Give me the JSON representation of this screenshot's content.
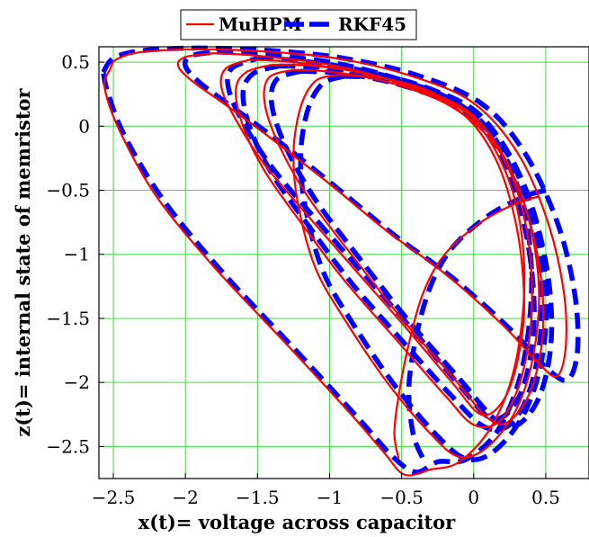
{
  "chart_data": {
    "type": "line",
    "title": "",
    "xlabel": "x(t)= voltage across capacitor",
    "ylabel": "z(t)= internal state of memristor",
    "xlim": [
      -2.6,
      0.8
    ],
    "ylim": [
      -2.75,
      0.62
    ],
    "x_ticks": [
      -2.5,
      -2,
      -1.5,
      -1,
      -0.5,
      0,
      0.5
    ],
    "x_tick_labels": [
      "−2.5",
      "−2",
      "−1.5",
      "−1",
      "−0.5",
      "0",
      "0.5"
    ],
    "y_ticks": [
      0.5,
      0,
      -0.5,
      -1,
      -1.5,
      -2,
      -2.5
    ],
    "y_tick_labels": [
      "0.5",
      "0",
      "−0.5",
      "−1",
      "−1.5",
      "−2",
      "−2.5"
    ],
    "grid": true,
    "legend_position": "top-center",
    "series": [
      {
        "name": "MuHPM",
        "color": "#ff0000",
        "style": "solid",
        "loops": [
          [
            [
              -2.52,
              0.45
            ],
            [
              -2.48,
              0.52
            ],
            [
              -2.3,
              0.58
            ],
            [
              -1.9,
              0.6
            ],
            [
              -1.4,
              0.58
            ],
            [
              -0.9,
              0.52
            ],
            [
              -0.4,
              0.38
            ],
            [
              0.0,
              0.18
            ],
            [
              0.3,
              -0.2
            ],
            [
              0.5,
              -0.7
            ],
            [
              0.62,
              -1.25
            ],
            [
              0.64,
              -1.7
            ],
            [
              0.58,
              -1.95
            ],
            [
              0.45,
              -1.85
            ],
            [
              0.2,
              -1.55
            ],
            [
              -0.2,
              -1.15
            ],
            [
              -0.6,
              -0.82
            ],
            [
              -1.0,
              -0.45
            ],
            [
              -1.4,
              -0.1
            ],
            [
              -1.7,
              0.15
            ],
            [
              -1.95,
              0.35
            ],
            [
              -2.05,
              0.47
            ],
            [
              -2.0,
              0.54
            ],
            [
              -1.8,
              0.57
            ]
          ],
          [
            [
              -1.8,
              0.57
            ],
            [
              -1.5,
              0.55
            ],
            [
              -1.0,
              0.48
            ],
            [
              -0.5,
              0.33
            ],
            [
              -0.1,
              0.12
            ],
            [
              0.15,
              -0.25
            ],
            [
              0.3,
              -0.8
            ],
            [
              0.35,
              -1.4
            ],
            [
              0.3,
              -1.85
            ],
            [
              0.2,
              -2.15
            ],
            [
              0.05,
              -2.25
            ],
            [
              -0.15,
              -2.0
            ],
            [
              -0.45,
              -1.6
            ],
            [
              -0.8,
              -1.15
            ],
            [
              -1.15,
              -0.7
            ],
            [
              -1.45,
              -0.3
            ],
            [
              -1.65,
              0.05
            ],
            [
              -1.75,
              0.3
            ],
            [
              -1.72,
              0.45
            ],
            [
              -1.55,
              0.52
            ]
          ],
          [
            [
              -1.55,
              0.52
            ],
            [
              -1.25,
              0.5
            ],
            [
              -0.8,
              0.42
            ],
            [
              -0.35,
              0.28
            ],
            [
              0.0,
              0.08
            ],
            [
              0.25,
              -0.35
            ],
            [
              0.38,
              -0.9
            ],
            [
              0.4,
              -1.5
            ],
            [
              0.32,
              -2.0
            ],
            [
              0.18,
              -2.3
            ],
            [
              0.0,
              -2.33
            ],
            [
              -0.2,
              -2.1
            ],
            [
              -0.55,
              -1.65
            ],
            [
              -0.9,
              -1.2
            ],
            [
              -1.2,
              -0.75
            ],
            [
              -1.45,
              -0.35
            ],
            [
              -1.6,
              0.0
            ],
            [
              -1.65,
              0.28
            ],
            [
              -1.58,
              0.42
            ],
            [
              -1.4,
              0.48
            ]
          ],
          [
            [
              -1.4,
              0.48
            ],
            [
              -1.1,
              0.47
            ],
            [
              -0.7,
              0.4
            ],
            [
              -0.3,
              0.25
            ],
            [
              0.05,
              0.02
            ],
            [
              0.3,
              -0.45
            ],
            [
              0.45,
              -1.05
            ],
            [
              0.48,
              -1.6
            ],
            [
              0.4,
              -2.05
            ],
            [
              0.25,
              -2.3
            ],
            [
              0.1,
              -2.28
            ],
            [
              -0.15,
              -1.95
            ],
            [
              -0.5,
              -1.5
            ],
            [
              -0.85,
              -1.0
            ],
            [
              -1.15,
              -0.55
            ],
            [
              -1.35,
              -0.15
            ],
            [
              -1.45,
              0.18
            ],
            [
              -1.42,
              0.38
            ],
            [
              -1.25,
              0.44
            ]
          ],
          [
            [
              -1.25,
              0.44
            ],
            [
              -0.95,
              0.42
            ],
            [
              -0.55,
              0.33
            ],
            [
              -0.15,
              0.15
            ],
            [
              0.15,
              -0.15
            ],
            [
              0.35,
              -0.6
            ],
            [
              0.45,
              -1.2
            ],
            [
              0.42,
              -1.75
            ],
            [
              0.3,
              -2.2
            ],
            [
              0.1,
              -2.5
            ],
            [
              -0.1,
              -2.58
            ],
            [
              -0.3,
              -2.4
            ],
            [
              -0.6,
              -2.0
            ],
            [
              -0.9,
              -1.5
            ],
            [
              -1.1,
              -1.1
            ],
            [
              -1.22,
              -0.6
            ],
            [
              -1.25,
              -0.2
            ],
            [
              -1.2,
              0.15
            ],
            [
              -1.1,
              0.35
            ],
            [
              -0.95,
              0.4
            ]
          ],
          [
            [
              -0.95,
              0.4
            ],
            [
              -0.65,
              0.38
            ],
            [
              -0.3,
              0.27
            ],
            [
              0.0,
              0.05
            ],
            [
              0.2,
              -0.3
            ],
            [
              0.32,
              -0.75
            ],
            [
              0.35,
              -1.3
            ],
            [
              0.28,
              -1.9
            ],
            [
              0.12,
              -2.35
            ],
            [
              -0.1,
              -2.62
            ],
            [
              -0.3,
              -2.68
            ],
            [
              -0.48,
              -2.72
            ],
            [
              -0.62,
              -2.55
            ],
            [
              -0.85,
              -2.25
            ],
            [
              -1.3,
              -1.7
            ],
            [
              -1.8,
              -1.1
            ],
            [
              -2.2,
              -0.55
            ],
            [
              -2.45,
              -0.05
            ],
            [
              -2.56,
              0.3
            ],
            [
              -2.52,
              0.45
            ]
          ],
          [
            [
              0.45,
              -0.55
            ],
            [
              0.3,
              -0.6
            ],
            [
              0.05,
              -0.75
            ],
            [
              -0.2,
              -1.0
            ],
            [
              -0.35,
              -1.3
            ],
            [
              -0.45,
              -1.7
            ],
            [
              -0.52,
              -2.1
            ],
            [
              -0.55,
              -2.4
            ],
            [
              -0.52,
              -2.6
            ]
          ]
        ]
      },
      {
        "name": "RKF45",
        "color": "#0000ff",
        "style": "dashed",
        "loops": [
          [
            [
              -2.57,
              0.42
            ],
            [
              -2.5,
              0.53
            ],
            [
              -2.3,
              0.59
            ],
            [
              -1.9,
              0.61
            ],
            [
              -1.4,
              0.59
            ],
            [
              -0.9,
              0.53
            ],
            [
              -0.4,
              0.4
            ],
            [
              0.05,
              0.18
            ],
            [
              0.35,
              -0.2
            ],
            [
              0.58,
              -0.75
            ],
            [
              0.7,
              -1.3
            ],
            [
              0.72,
              -1.75
            ],
            [
              0.65,
              -1.98
            ],
            [
              0.5,
              -1.88
            ],
            [
              0.25,
              -1.58
            ],
            [
              -0.15,
              -1.18
            ],
            [
              -0.55,
              -0.85
            ],
            [
              -0.95,
              -0.48
            ],
            [
              -1.35,
              -0.12
            ],
            [
              -1.65,
              0.13
            ],
            [
              -1.9,
              0.34
            ],
            [
              -2.0,
              0.47
            ],
            [
              -1.96,
              0.55
            ],
            [
              -1.78,
              0.58
            ]
          ],
          [
            [
              -1.78,
              0.58
            ],
            [
              -1.45,
              0.56
            ],
            [
              -0.95,
              0.49
            ],
            [
              -0.45,
              0.34
            ],
            [
              -0.05,
              0.12
            ],
            [
              0.2,
              -0.25
            ],
            [
              0.36,
              -0.82
            ],
            [
              0.42,
              -1.42
            ],
            [
              0.38,
              -1.88
            ],
            [
              0.28,
              -2.18
            ],
            [
              0.12,
              -2.28
            ],
            [
              -0.1,
              -2.02
            ],
            [
              -0.4,
              -1.62
            ],
            [
              -0.75,
              -1.17
            ],
            [
              -1.1,
              -0.72
            ],
            [
              -1.4,
              -0.32
            ],
            [
              -1.6,
              0.03
            ],
            [
              -1.7,
              0.29
            ],
            [
              -1.68,
              0.45
            ],
            [
              -1.5,
              0.53
            ]
          ],
          [
            [
              -1.5,
              0.53
            ],
            [
              -1.2,
              0.51
            ],
            [
              -0.75,
              0.43
            ],
            [
              -0.3,
              0.29
            ],
            [
              0.05,
              0.08
            ],
            [
              0.3,
              -0.36
            ],
            [
              0.44,
              -0.92
            ],
            [
              0.47,
              -1.52
            ],
            [
              0.4,
              -2.02
            ],
            [
              0.26,
              -2.32
            ],
            [
              0.08,
              -2.35
            ],
            [
              -0.14,
              -2.12
            ],
            [
              -0.5,
              -1.67
            ],
            [
              -0.85,
              -1.22
            ],
            [
              -1.15,
              -0.77
            ],
            [
              -1.4,
              -0.37
            ],
            [
              -1.55,
              -0.02
            ],
            [
              -1.6,
              0.26
            ],
            [
              -1.53,
              0.41
            ],
            [
              -1.35,
              0.47
            ]
          ],
          [
            [
              -1.35,
              0.47
            ],
            [
              -1.05,
              0.46
            ],
            [
              -0.65,
              0.39
            ],
            [
              -0.25,
              0.24
            ],
            [
              0.1,
              0.01
            ],
            [
              0.35,
              -0.46
            ],
            [
              0.5,
              -1.06
            ],
            [
              0.54,
              -1.62
            ],
            [
              0.47,
              -2.07
            ],
            [
              0.32,
              -2.32
            ],
            [
              0.16,
              -2.3
            ],
            [
              -0.1,
              -1.97
            ],
            [
              -0.45,
              -1.52
            ],
            [
              -0.8,
              -1.02
            ],
            [
              -1.1,
              -0.57
            ],
            [
              -1.3,
              -0.17
            ],
            [
              -1.4,
              0.16
            ],
            [
              -1.37,
              0.36
            ],
            [
              -1.2,
              0.43
            ]
          ],
          [
            [
              -1.2,
              0.43
            ],
            [
              -0.9,
              0.41
            ],
            [
              -0.5,
              0.32
            ],
            [
              -0.1,
              0.14
            ],
            [
              0.2,
              -0.16
            ],
            [
              0.4,
              -0.62
            ],
            [
              0.5,
              -1.22
            ],
            [
              0.48,
              -1.77
            ],
            [
              0.36,
              -2.22
            ],
            [
              0.16,
              -2.52
            ],
            [
              -0.04,
              -2.6
            ],
            [
              -0.25,
              -2.42
            ],
            [
              -0.55,
              -2.02
            ],
            [
              -0.85,
              -1.52
            ],
            [
              -1.05,
              -1.12
            ],
            [
              -1.17,
              -0.62
            ],
            [
              -1.2,
              -0.22
            ],
            [
              -1.15,
              0.13
            ],
            [
              -1.05,
              0.33
            ],
            [
              -0.9,
              0.39
            ]
          ],
          [
            [
              -0.9,
              0.39
            ],
            [
              -0.6,
              0.37
            ],
            [
              -0.25,
              0.26
            ],
            [
              0.05,
              0.04
            ],
            [
              0.25,
              -0.31
            ],
            [
              0.37,
              -0.77
            ],
            [
              0.4,
              -1.32
            ],
            [
              0.33,
              -1.92
            ],
            [
              0.17,
              -2.37
            ],
            [
              -0.05,
              -2.6
            ],
            [
              -0.25,
              -2.62
            ],
            [
              -0.4,
              -2.7
            ],
            [
              -0.56,
              -2.58
            ],
            [
              -0.8,
              -2.28
            ],
            [
              -1.25,
              -1.73
            ],
            [
              -1.75,
              -1.13
            ],
            [
              -2.15,
              -0.58
            ],
            [
              -2.42,
              -0.08
            ],
            [
              -2.54,
              0.27
            ],
            [
              -2.57,
              0.42
            ]
          ],
          [
            [
              0.5,
              -0.5
            ],
            [
              0.35,
              -0.55
            ],
            [
              0.1,
              -0.7
            ],
            [
              -0.15,
              -0.95
            ],
            [
              -0.3,
              -1.25
            ],
            [
              -0.4,
              -1.65
            ],
            [
              -0.45,
              -2.05
            ],
            [
              -0.42,
              -2.4
            ],
            [
              -0.35,
              -2.6
            ]
          ]
        ]
      }
    ]
  }
}
